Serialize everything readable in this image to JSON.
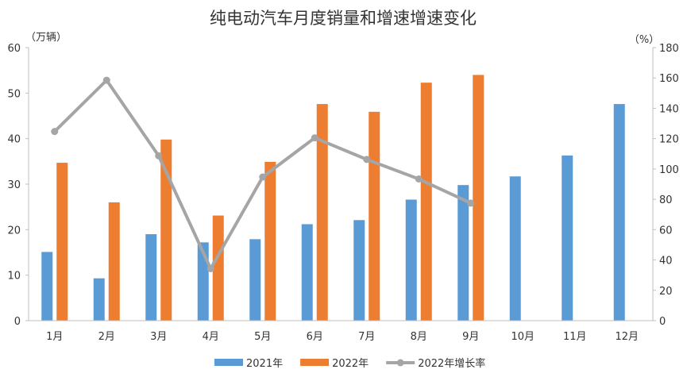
{
  "chart_data": {
    "type": "bar",
    "title": "纯电动汽车月度销量和增速增速变化",
    "ylabel_left": "（万辆）",
    "ylabel_right": "（%）",
    "categories": [
      "1月",
      "2月",
      "3月",
      "4月",
      "5月",
      "6月",
      "7月",
      "8月",
      "9月",
      "10月",
      "11月",
      "12月"
    ],
    "series": [
      {
        "name": "2021年",
        "kind": "bar",
        "axis": "left",
        "color": "#5B9BD5",
        "values": [
          15.1,
          9.3,
          19.0,
          17.2,
          17.9,
          21.2,
          22.1,
          26.6,
          29.8,
          31.7,
          36.3,
          47.6
        ]
      },
      {
        "name": "2022年",
        "kind": "bar",
        "axis": "left",
        "color": "#ED7D31",
        "values": [
          34.7,
          26.0,
          39.8,
          23.1,
          34.9,
          47.6,
          45.9,
          52.3,
          54.0,
          null,
          null,
          null
        ]
      },
      {
        "name": "2022年增长率",
        "kind": "line",
        "axis": "right",
        "color": "#A5A5A5",
        "values": [
          124.7,
          158.5,
          108.7,
          34.3,
          94.7,
          120.5,
          106.3,
          93.4,
          77.5,
          null,
          null,
          null
        ]
      }
    ],
    "ylim_left": [
      0,
      60
    ],
    "ylim_right": [
      0,
      180
    ],
    "yticks_left": [
      "0",
      "10",
      "20",
      "30",
      "40",
      "50",
      "60"
    ],
    "yticks_right": [
      "0",
      "20",
      "40",
      "60",
      "80",
      "100",
      "120",
      "140",
      "160",
      "180"
    ],
    "grid": false,
    "legend_position": "bottom-center"
  }
}
